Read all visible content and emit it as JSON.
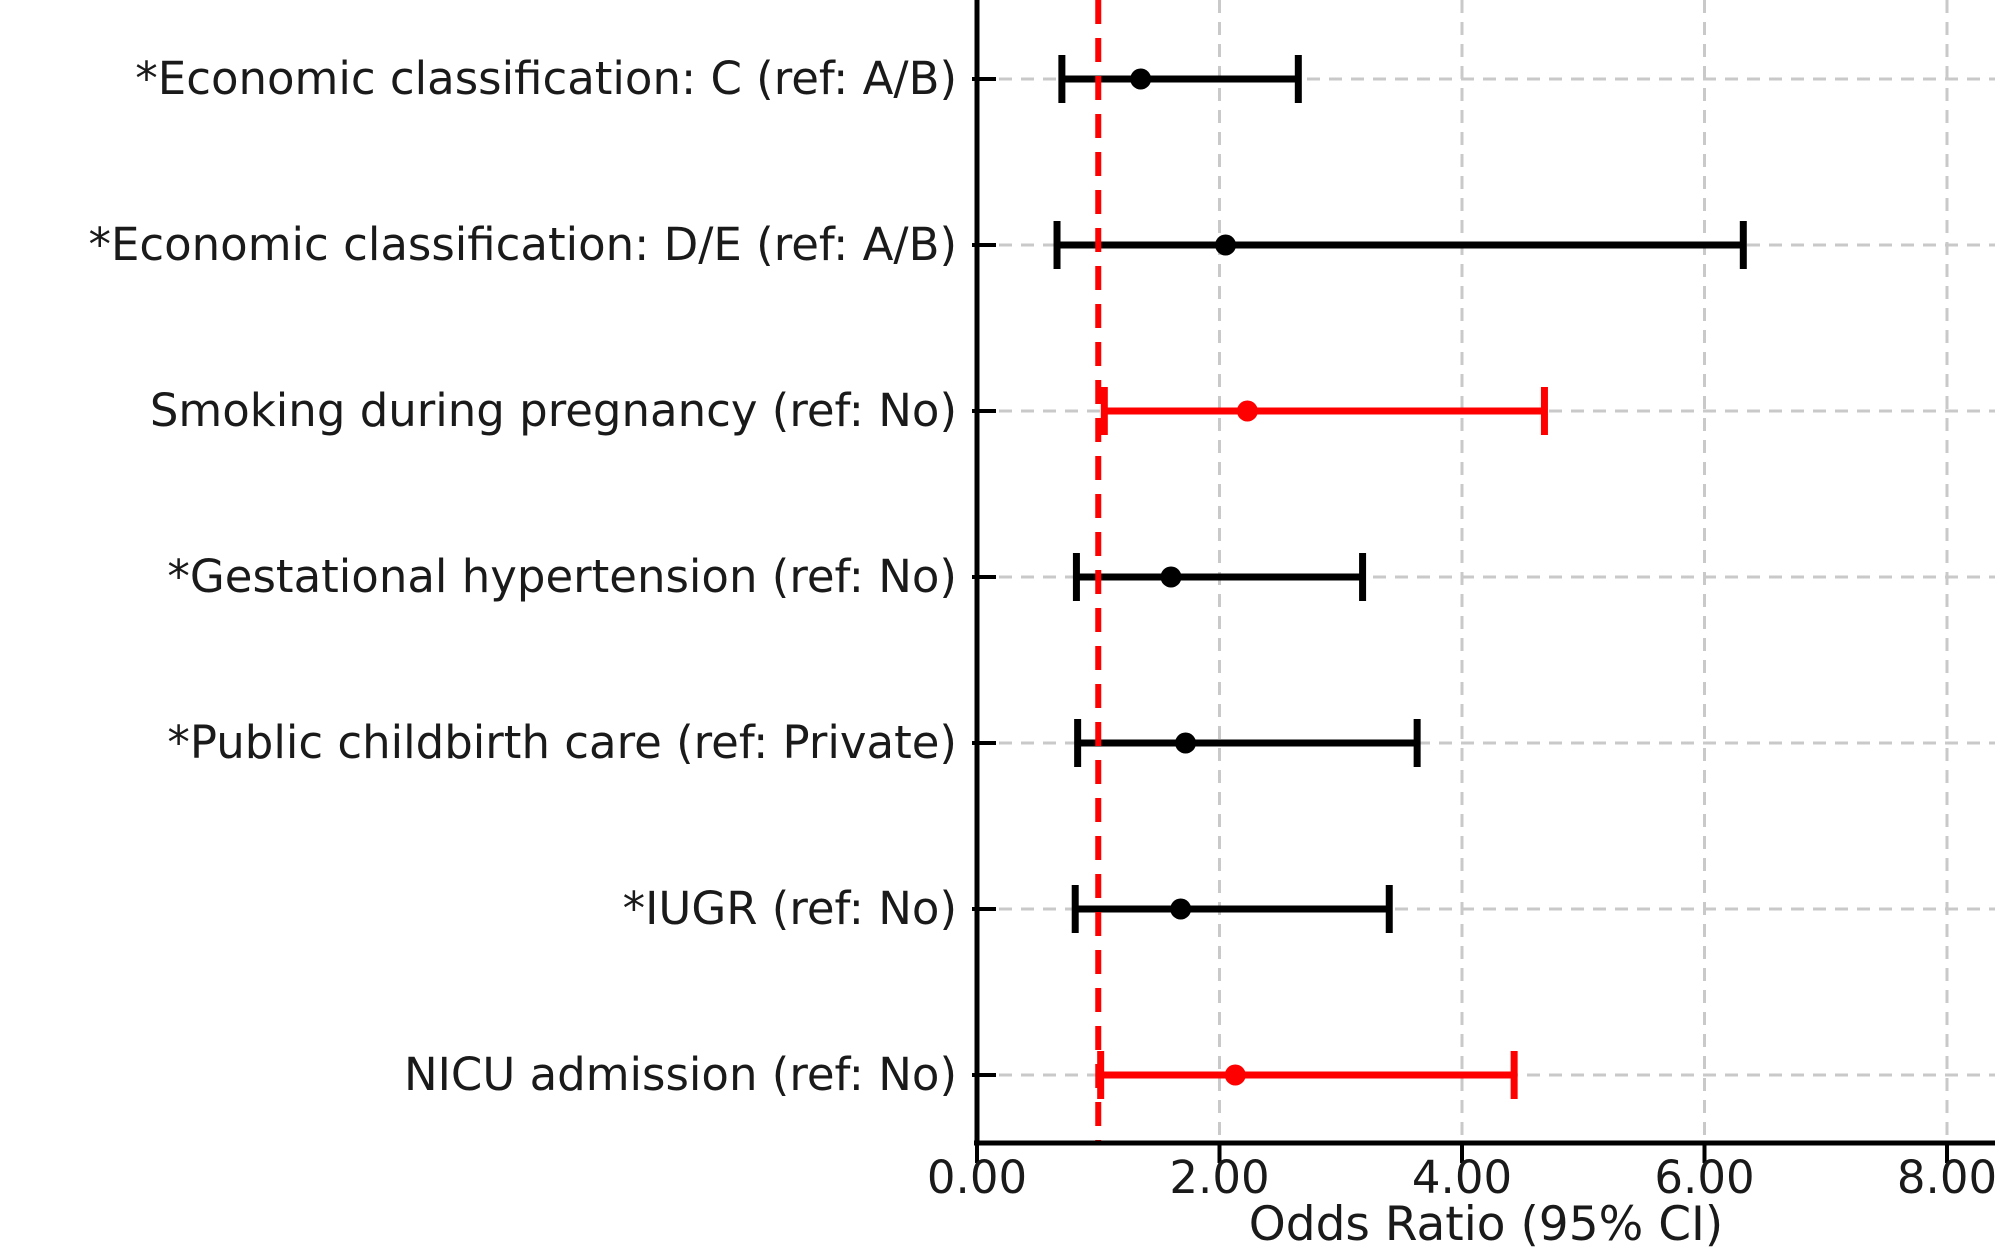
{
  "figure": {
    "background": "#ffffff"
  },
  "chart_data": {
    "type": "scatter",
    "subtype": "forest_plot_odds_ratios",
    "title": "",
    "xlabel": "Odds Ratio (95% CI)",
    "ylabel": "",
    "xlim": [
      0,
      8.4
    ],
    "xticks": [
      0,
      2,
      4,
      6,
      8
    ],
    "xtick_labels": [
      "0.00",
      "2.00",
      "4.00",
      "6.00",
      "8.00"
    ],
    "grid": "dashed light gray: vertical at x ticks, horizontal at each row",
    "legend": null,
    "reference_line": {
      "x": 1.0,
      "color": "#ff0000",
      "style": "dashed"
    },
    "colors": {
      "default_series": "#000000",
      "significant_series": "#ff0000",
      "gridline": "#c9c9c9",
      "text": "#1a1a1a"
    },
    "rows": [
      {
        "label": "*Economic classification: C (ref: A/B)",
        "odds_ratio": 1.35,
        "ci_low": 0.7,
        "ci_high": 2.65,
        "color": "#000000"
      },
      {
        "label": "*Economic classification: D/E (ref: A/B)",
        "odds_ratio": 2.05,
        "ci_low": 0.66,
        "ci_high": 6.32,
        "color": "#000000"
      },
      {
        "label": "Smoking during pregnancy (ref: No)",
        "odds_ratio": 2.23,
        "ci_low": 1.05,
        "ci_high": 4.68,
        "color": "#ff0000"
      },
      {
        "label": "*Gestational hypertension (ref: No)",
        "odds_ratio": 1.6,
        "ci_low": 0.82,
        "ci_high": 3.18,
        "color": "#000000"
      },
      {
        "label": "*Public childbirth care (ref: Private)",
        "odds_ratio": 1.72,
        "ci_low": 0.83,
        "ci_high": 3.63,
        "color": "#000000"
      },
      {
        "label": "*IUGR (ref: No)",
        "odds_ratio": 1.68,
        "ci_low": 0.81,
        "ci_high": 3.4,
        "color": "#000000"
      },
      {
        "label": "NICU admission (ref: No)",
        "odds_ratio": 2.13,
        "ci_low": 1.02,
        "ci_high": 4.43,
        "color": "#ff0000"
      }
    ]
  }
}
